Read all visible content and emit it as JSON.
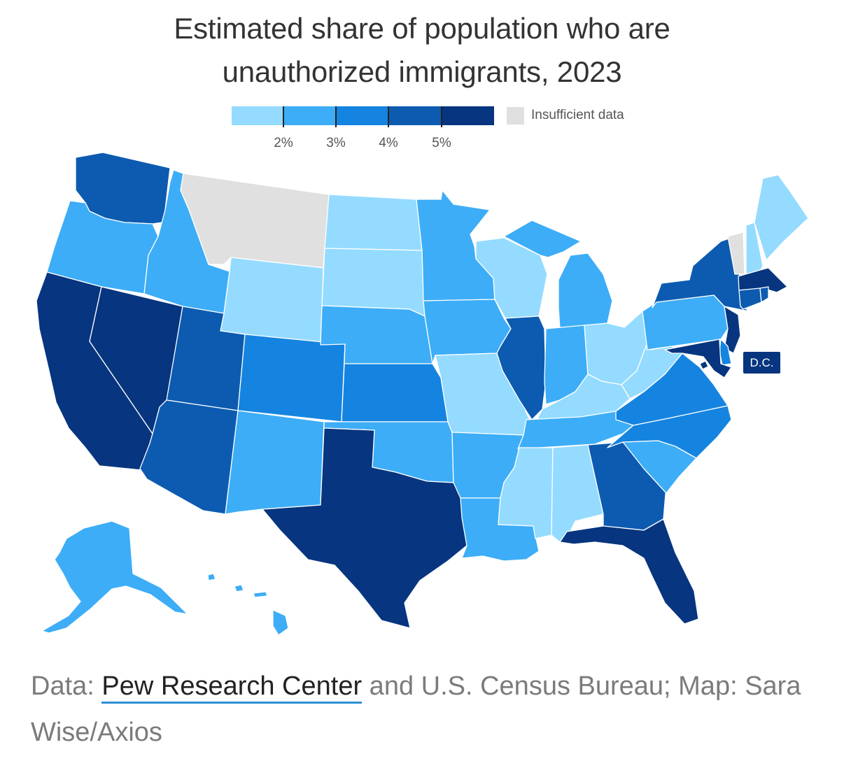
{
  "title": {
    "line1": "Estimated share of population who are",
    "line2": "unauthorized immigrants, 2023"
  },
  "legend": {
    "bins": [
      {
        "range": "under 2%",
        "color": "#94dbff"
      },
      {
        "range": "2–3%",
        "color": "#3dadf7"
      },
      {
        "range": "3–4%",
        "color": "#1584e0"
      },
      {
        "range": "4–5%",
        "color": "#0c5bb0"
      },
      {
        "range": "5% and over",
        "color": "#07357f"
      }
    ],
    "ticks": [
      "2%",
      "3%",
      "4%",
      "5%"
    ],
    "no_data_label": "Insufficient data",
    "no_data_color": "#e0e0e0"
  },
  "map": {
    "dc_label": "D.C.",
    "states": [
      {
        "abbr": "WA",
        "bin": 3
      },
      {
        "abbr": "OR",
        "bin": 1
      },
      {
        "abbr": "CA",
        "bin": 4
      },
      {
        "abbr": "NV",
        "bin": 4
      },
      {
        "abbr": "ID",
        "bin": 1
      },
      {
        "abbr": "MT",
        "bin": -1
      },
      {
        "abbr": "WY",
        "bin": 0
      },
      {
        "abbr": "UT",
        "bin": 3
      },
      {
        "abbr": "AZ",
        "bin": 3
      },
      {
        "abbr": "CO",
        "bin": 2
      },
      {
        "abbr": "NM",
        "bin": 1
      },
      {
        "abbr": "ND",
        "bin": 0
      },
      {
        "abbr": "SD",
        "bin": 0
      },
      {
        "abbr": "NE",
        "bin": 1
      },
      {
        "abbr": "KS",
        "bin": 2
      },
      {
        "abbr": "OK",
        "bin": 1
      },
      {
        "abbr": "TX",
        "bin": 4
      },
      {
        "abbr": "MN",
        "bin": 1
      },
      {
        "abbr": "IA",
        "bin": 1
      },
      {
        "abbr": "MO",
        "bin": 0
      },
      {
        "abbr": "AR",
        "bin": 1
      },
      {
        "abbr": "LA",
        "bin": 1
      },
      {
        "abbr": "WI",
        "bin": 0
      },
      {
        "abbr": "IL",
        "bin": 3
      },
      {
        "abbr": "MI",
        "bin": 1
      },
      {
        "abbr": "IN",
        "bin": 1
      },
      {
        "abbr": "OH",
        "bin": 0
      },
      {
        "abbr": "KY",
        "bin": 0
      },
      {
        "abbr": "TN",
        "bin": 1
      },
      {
        "abbr": "MS",
        "bin": 0
      },
      {
        "abbr": "AL",
        "bin": 0
      },
      {
        "abbr": "GA",
        "bin": 3
      },
      {
        "abbr": "FL",
        "bin": 4
      },
      {
        "abbr": "SC",
        "bin": 1
      },
      {
        "abbr": "NC",
        "bin": 2
      },
      {
        "abbr": "VA",
        "bin": 2
      },
      {
        "abbr": "WV",
        "bin": 0
      },
      {
        "abbr": "PA",
        "bin": 1
      },
      {
        "abbr": "NY",
        "bin": 3
      },
      {
        "abbr": "VT",
        "bin": -1
      },
      {
        "abbr": "NH",
        "bin": 0
      },
      {
        "abbr": "ME",
        "bin": 0
      },
      {
        "abbr": "MA",
        "bin": 4
      },
      {
        "abbr": "RI",
        "bin": 3
      },
      {
        "abbr": "CT",
        "bin": 3
      },
      {
        "abbr": "NJ",
        "bin": 4
      },
      {
        "abbr": "DE",
        "bin": 2
      },
      {
        "abbr": "MD",
        "bin": 4
      },
      {
        "abbr": "DC",
        "bin": 4
      },
      {
        "abbr": "AK",
        "bin": 1
      },
      {
        "abbr": "HI",
        "bin": 1
      }
    ]
  },
  "source": {
    "prefix": "Data: ",
    "link_text": "Pew Research Center",
    "suffix": " and U.S. Census Bureau; Map: Sara Wise/Axios"
  }
}
